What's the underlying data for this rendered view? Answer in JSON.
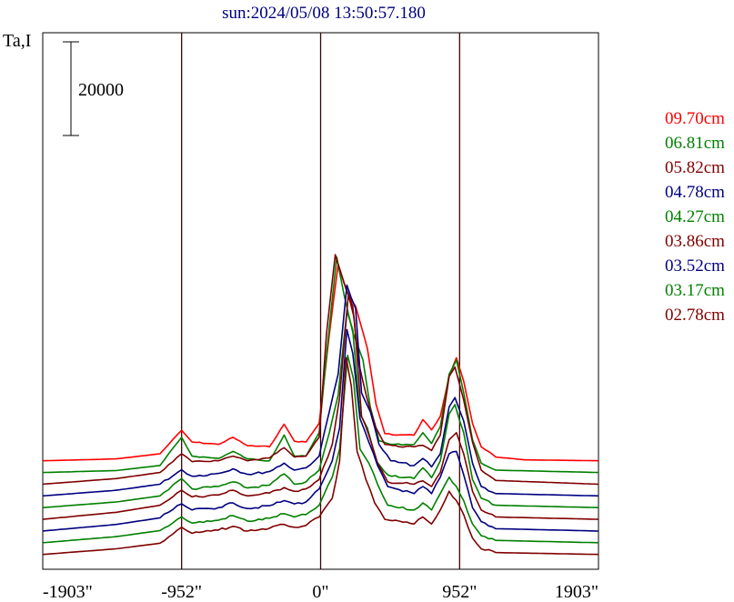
{
  "chart_data": {
    "type": "line",
    "title": "sun:2024/05/08 13:50:57.180",
    "ylabel": "Ta,I",
    "scale_bar_label": "20000",
    "x_ticks": [
      "-1903\"",
      "-952\"",
      "0\"",
      "952\"",
      "1903\""
    ],
    "x_tick_values": [
      -1903,
      -952,
      0,
      952,
      1903
    ],
    "xlim": [
      -1903,
      1903
    ],
    "vertical_markers": [
      -952,
      0,
      952
    ],
    "grid": false,
    "legend_position": "right",
    "series": [
      {
        "name": "09.70cm",
        "color": "#ff0000",
        "baseline": 22000,
        "profile": "smooth",
        "points": [
          [
            -1903,
            0
          ],
          [
            -1400,
            400
          ],
          [
            -1100,
            1500
          ],
          [
            -952,
            6500
          ],
          [
            -880,
            4000
          ],
          [
            -700,
            3500
          ],
          [
            -600,
            5000
          ],
          [
            -500,
            3200
          ],
          [
            -350,
            3000
          ],
          [
            -250,
            7800
          ],
          [
            -180,
            4200
          ],
          [
            -100,
            4000
          ],
          [
            -10,
            8000
          ],
          [
            60,
            27000
          ],
          [
            120,
            42000
          ],
          [
            180,
            36000
          ],
          [
            240,
            33000
          ],
          [
            320,
            24000
          ],
          [
            380,
            12000
          ],
          [
            440,
            5800
          ],
          [
            520,
            5500
          ],
          [
            640,
            5500
          ],
          [
            700,
            8800
          ],
          [
            760,
            6600
          ],
          [
            820,
            9500
          ],
          [
            880,
            18000
          ],
          [
            930,
            22000
          ],
          [
            980,
            17000
          ],
          [
            1040,
            8000
          ],
          [
            1100,
            3000
          ],
          [
            1200,
            800
          ],
          [
            1400,
            200
          ],
          [
            1903,
            0
          ]
        ]
      },
      {
        "name": "06.81cm",
        "color": "#008000",
        "baseline": 19500,
        "profile": "smooth",
        "points": [
          [
            -1903,
            0
          ],
          [
            -1400,
            400
          ],
          [
            -1100,
            1500
          ],
          [
            -952,
            7500
          ],
          [
            -880,
            3500
          ],
          [
            -700,
            3000
          ],
          [
            -600,
            4500
          ],
          [
            -500,
            2900
          ],
          [
            -350,
            2500
          ],
          [
            -250,
            8000
          ],
          [
            -180,
            3500
          ],
          [
            -100,
            3500
          ],
          [
            -10,
            8500
          ],
          [
            50,
            28000
          ],
          [
            110,
            46000
          ],
          [
            160,
            38000
          ],
          [
            220,
            30000
          ],
          [
            290,
            24000
          ],
          [
            340,
            14000
          ],
          [
            400,
            6800
          ],
          [
            480,
            6000
          ],
          [
            640,
            6000
          ],
          [
            700,
            8500
          ],
          [
            760,
            6200
          ],
          [
            820,
            9800
          ],
          [
            880,
            21000
          ],
          [
            930,
            24000
          ],
          [
            980,
            17000
          ],
          [
            1040,
            7000
          ],
          [
            1100,
            2000
          ],
          [
            1200,
            500
          ],
          [
            1903,
            0
          ]
        ]
      },
      {
        "name": "05.82cm",
        "color": "#800000",
        "baseline": 17000,
        "profile": "smooth",
        "points": [
          [
            -1903,
            0
          ],
          [
            -1400,
            1200
          ],
          [
            -1100,
            2500
          ],
          [
            -952,
            6500
          ],
          [
            -880,
            4800
          ],
          [
            -700,
            5000
          ],
          [
            -600,
            6000
          ],
          [
            -500,
            5000
          ],
          [
            -350,
            5600
          ],
          [
            -250,
            7800
          ],
          [
            -180,
            5800
          ],
          [
            -100,
            6000
          ],
          [
            -10,
            10000
          ],
          [
            40,
            32000
          ],
          [
            100,
            49000
          ],
          [
            160,
            43000
          ],
          [
            220,
            38000
          ],
          [
            260,
            26000
          ],
          [
            320,
            18000
          ],
          [
            380,
            12000
          ],
          [
            440,
            8500
          ],
          [
            540,
            8000
          ],
          [
            640,
            8000
          ],
          [
            700,
            8300
          ],
          [
            760,
            7200
          ],
          [
            820,
            10500
          ],
          [
            880,
            23000
          ],
          [
            920,
            25000
          ],
          [
            980,
            18000
          ],
          [
            1040,
            9000
          ],
          [
            1100,
            3000
          ],
          [
            1200,
            800
          ],
          [
            1903,
            0
          ]
        ]
      },
      {
        "name": "04.78cm",
        "color": "#000080",
        "baseline": 14500,
        "profile": "peaked",
        "points": [
          [
            -1903,
            0
          ],
          [
            -1400,
            1200
          ],
          [
            -1100,
            2500
          ],
          [
            -952,
            5600
          ],
          [
            -880,
            4200
          ],
          [
            -700,
            4800
          ],
          [
            -600,
            5800
          ],
          [
            -500,
            4600
          ],
          [
            -350,
            5200
          ],
          [
            -250,
            7000
          ],
          [
            -180,
            5500
          ],
          [
            -100,
            6000
          ],
          [
            -10,
            8500
          ],
          [
            60,
            18000
          ],
          [
            120,
            26000
          ],
          [
            180,
            45000
          ],
          [
            240,
            40000
          ],
          [
            280,
            22000
          ],
          [
            340,
            18000
          ],
          [
            400,
            11000
          ],
          [
            480,
            7500
          ],
          [
            640,
            6500
          ],
          [
            700,
            8000
          ],
          [
            760,
            6200
          ],
          [
            820,
            9000
          ],
          [
            880,
            19000
          ],
          [
            920,
            21000
          ],
          [
            980,
            16000
          ],
          [
            1040,
            7000
          ],
          [
            1100,
            2000
          ],
          [
            1200,
            500
          ],
          [
            1903,
            0
          ]
        ]
      },
      {
        "name": "04.27cm",
        "color": "#008000",
        "baseline": 12000,
        "profile": "peaked",
        "points": [
          [
            -1903,
            0
          ],
          [
            -1400,
            1200
          ],
          [
            -1100,
            2500
          ],
          [
            -952,
            6200
          ],
          [
            -880,
            4000
          ],
          [
            -700,
            4500
          ],
          [
            -600,
            5500
          ],
          [
            -500,
            4200
          ],
          [
            -350,
            4800
          ],
          [
            -250,
            7200
          ],
          [
            -180,
            5000
          ],
          [
            -100,
            5500
          ],
          [
            -10,
            8000
          ],
          [
            60,
            16000
          ],
          [
            120,
            24000
          ],
          [
            180,
            42000
          ],
          [
            220,
            38000
          ],
          [
            270,
            20000
          ],
          [
            320,
            17000
          ],
          [
            380,
            10000
          ],
          [
            460,
            7000
          ],
          [
            640,
            6200
          ],
          [
            700,
            8500
          ],
          [
            760,
            6400
          ],
          [
            820,
            10000
          ],
          [
            880,
            20000
          ],
          [
            920,
            22000
          ],
          [
            980,
            16000
          ],
          [
            1040,
            6000
          ],
          [
            1100,
            2000
          ],
          [
            1200,
            500
          ],
          [
            1903,
            0
          ]
        ]
      },
      {
        "name": "03.86cm",
        "color": "#800000",
        "baseline": 9500,
        "profile": "peaked",
        "points": [
          [
            -1903,
            0
          ],
          [
            -1400,
            1500
          ],
          [
            -1100,
            3000
          ],
          [
            -952,
            6200
          ],
          [
            -880,
            4800
          ],
          [
            -700,
            5200
          ],
          [
            -600,
            6200
          ],
          [
            -500,
            5000
          ],
          [
            -350,
            5600
          ],
          [
            -250,
            6800
          ],
          [
            -180,
            6000
          ],
          [
            -100,
            6500
          ],
          [
            -10,
            8500
          ],
          [
            80,
            16000
          ],
          [
            130,
            26000
          ],
          [
            190,
            48000
          ],
          [
            230,
            43000
          ],
          [
            280,
            22000
          ],
          [
            330,
            18000
          ],
          [
            390,
            12000
          ],
          [
            460,
            8000
          ],
          [
            640,
            7500
          ],
          [
            700,
            8200
          ],
          [
            760,
            7000
          ],
          [
            820,
            10000
          ],
          [
            880,
            17000
          ],
          [
            930,
            18500
          ],
          [
            980,
            14000
          ],
          [
            1040,
            6000
          ],
          [
            1100,
            2000
          ],
          [
            1200,
            500
          ],
          [
            1903,
            0
          ]
        ]
      },
      {
        "name": "03.52cm",
        "color": "#000080",
        "baseline": 7000,
        "profile": "peaked",
        "points": [
          [
            -1903,
            0
          ],
          [
            -1400,
            1400
          ],
          [
            -1100,
            2800
          ],
          [
            -952,
            5800
          ],
          [
            -880,
            4500
          ],
          [
            -700,
            5000
          ],
          [
            -600,
            6000
          ],
          [
            -500,
            4800
          ],
          [
            -350,
            5400
          ],
          [
            -250,
            6500
          ],
          [
            -180,
            5800
          ],
          [
            -100,
            6200
          ],
          [
            -10,
            9000
          ],
          [
            80,
            15000
          ],
          [
            130,
            22000
          ],
          [
            180,
            43000
          ],
          [
            220,
            38000
          ],
          [
            270,
            24000
          ],
          [
            330,
            19000
          ],
          [
            390,
            14000
          ],
          [
            460,
            9500
          ],
          [
            640,
            8000
          ],
          [
            700,
            9500
          ],
          [
            760,
            8000
          ],
          [
            820,
            11500
          ],
          [
            880,
            16500
          ],
          [
            930,
            17000
          ],
          [
            980,
            12000
          ],
          [
            1040,
            5000
          ],
          [
            1100,
            2000
          ],
          [
            1200,
            500
          ],
          [
            1903,
            0
          ]
        ]
      },
      {
        "name": "03.17cm",
        "color": "#008000",
        "baseline": 4500,
        "profile": "peaked",
        "points": [
          [
            -1903,
            0
          ],
          [
            -1400,
            1300
          ],
          [
            -1100,
            2600
          ],
          [
            -952,
            5500
          ],
          [
            -880,
            4200
          ],
          [
            -700,
            4800
          ],
          [
            -600,
            5800
          ],
          [
            -500,
            4600
          ],
          [
            -350,
            5200
          ],
          [
            -250,
            6200
          ],
          [
            -180,
            5500
          ],
          [
            -100,
            6000
          ],
          [
            -10,
            8000
          ],
          [
            80,
            14000
          ],
          [
            130,
            20000
          ],
          [
            185,
            40000
          ],
          [
            225,
            35000
          ],
          [
            270,
            20000
          ],
          [
            330,
            17000
          ],
          [
            390,
            12500
          ],
          [
            460,
            8000
          ],
          [
            640,
            7000
          ],
          [
            700,
            8500
          ],
          [
            760,
            7000
          ],
          [
            820,
            10500
          ],
          [
            880,
            14000
          ],
          [
            930,
            12000
          ],
          [
            980,
            9000
          ],
          [
            1040,
            4000
          ],
          [
            1100,
            1500
          ],
          [
            1200,
            500
          ],
          [
            1903,
            0
          ]
        ]
      },
      {
        "name": "02.78cm",
        "color": "#800000",
        "baseline": 2000,
        "profile": "peaked",
        "points": [
          [
            -1903,
            0
          ],
          [
            -1400,
            1200
          ],
          [
            -1100,
            2400
          ],
          [
            -952,
            5800
          ],
          [
            -880,
            4500
          ],
          [
            -700,
            5200
          ],
          [
            -600,
            6000
          ],
          [
            -500,
            5000
          ],
          [
            -350,
            5600
          ],
          [
            -250,
            6400
          ],
          [
            -180,
            5800
          ],
          [
            -100,
            6200
          ],
          [
            -10,
            8000
          ],
          [
            80,
            12000
          ],
          [
            130,
            20000
          ],
          [
            175,
            42000
          ],
          [
            210,
            36000
          ],
          [
            250,
            22000
          ],
          [
            310,
            16000
          ],
          [
            370,
            11000
          ],
          [
            440,
            7500
          ],
          [
            640,
            6500
          ],
          [
            700,
            8000
          ],
          [
            760,
            6500
          ],
          [
            820,
            9500
          ],
          [
            880,
            13500
          ],
          [
            930,
            11500
          ],
          [
            980,
            8500
          ],
          [
            1040,
            3500
          ],
          [
            1100,
            1200
          ],
          [
            1200,
            400
          ],
          [
            1903,
            0
          ]
        ]
      }
    ]
  }
}
